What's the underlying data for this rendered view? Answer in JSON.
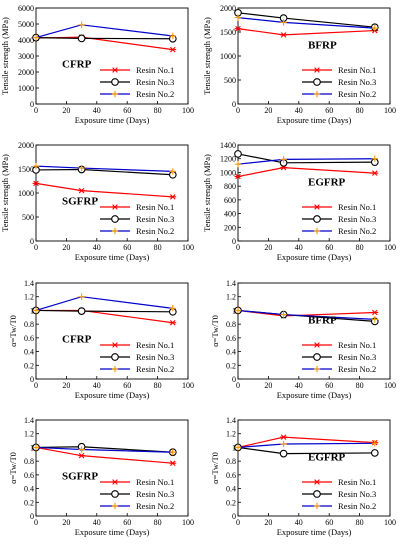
{
  "legend_labels": [
    "Resin No.1",
    "Resin No.3",
    "Resin No.2"
  ],
  "colors": {
    "resin1": "#ff0000",
    "resin3": "#000000",
    "resin2": "#0000cc",
    "resin2_marker": "#ff9900"
  },
  "chart_data": [
    {
      "type": "line",
      "panel": "CFRP",
      "label": "CFRP",
      "xlabel": "Exposure time (Days)",
      "ylabel": "Tensile strength (MPa)",
      "xlim": [
        0,
        100
      ],
      "ylim": [
        0,
        6000
      ],
      "xticks": [
        "0",
        "20",
        "40",
        "60",
        "80",
        "100"
      ],
      "yticks": [
        "0",
        "1000",
        "2000",
        "3000",
        "4000",
        "5000",
        "6000"
      ],
      "x": [
        0,
        30,
        90
      ],
      "series": [
        {
          "name": "Resin No.1",
          "values": [
            4120,
            4180,
            3400
          ]
        },
        {
          "name": "Resin No.3",
          "values": [
            4150,
            4100,
            4080
          ]
        },
        {
          "name": "Resin No.2",
          "values": [
            4150,
            4950,
            4250
          ]
        }
      ],
      "label_pos": "left"
    },
    {
      "type": "line",
      "panel": "BFRP",
      "label": "BFRP",
      "xlabel": "Exposure time (Days)",
      "ylabel": "Tensile strength (MPa)",
      "xlim": [
        0,
        100
      ],
      "ylim": [
        0,
        2000
      ],
      "xticks": [
        "0",
        "20",
        "40",
        "60",
        "80",
        "100"
      ],
      "yticks": [
        "0",
        "500",
        "1000",
        "1500",
        "2000"
      ],
      "x": [
        0,
        30,
        90
      ],
      "series": [
        {
          "name": "Resin No.1",
          "values": [
            1570,
            1440,
            1530
          ]
        },
        {
          "name": "Resin No.3",
          "values": [
            1900,
            1790,
            1600
          ]
        },
        {
          "name": "Resin No.2",
          "values": [
            1800,
            1700,
            1580
          ]
        }
      ],
      "label_pos": "right"
    },
    {
      "type": "line",
      "panel": "SGFRP",
      "label": "SGFRP",
      "xlabel": "Exposure time (Days)",
      "ylabel": "Tensile strength (MPa)",
      "xlim": [
        0,
        100
      ],
      "ylim": [
        0,
        2000
      ],
      "xticks": [
        "0",
        "20",
        "40",
        "60",
        "80",
        "100"
      ],
      "yticks": [
        "0",
        "500",
        "1000",
        "1500",
        "2000"
      ],
      "x": [
        0,
        30,
        90
      ],
      "series": [
        {
          "name": "Resin No.1",
          "values": [
            1200,
            1050,
            920
          ]
        },
        {
          "name": "Resin No.3",
          "values": [
            1480,
            1490,
            1380
          ]
        },
        {
          "name": "Resin No.2",
          "values": [
            1560,
            1520,
            1450
          ]
        }
      ],
      "label_pos": "left"
    },
    {
      "type": "line",
      "panel": "EGFRP",
      "label": "EGFRP",
      "xlabel": "Exposure time (Days)",
      "ylabel": "Tensile strength (MPa)",
      "xlim": [
        0,
        100
      ],
      "ylim": [
        0,
        1400
      ],
      "xticks": [
        "0",
        "20",
        "40",
        "60",
        "80",
        "100"
      ],
      "yticks": [
        "0",
        "200",
        "400",
        "600",
        "800",
        "1000",
        "1200",
        "1400"
      ],
      "x": [
        0,
        30,
        90
      ],
      "series": [
        {
          "name": "Resin No.1",
          "values": [
            940,
            1070,
            990
          ]
        },
        {
          "name": "Resin No.3",
          "values": [
            1270,
            1140,
            1150
          ]
        },
        {
          "name": "Resin No.2",
          "values": [
            1120,
            1190,
            1200
          ]
        }
      ],
      "label_pos": "right"
    },
    {
      "type": "line",
      "panel": "CFRP-retention",
      "label": "CFRP",
      "xlabel": "Exposure time (Days)",
      "ylabel": "α=Tw/T0",
      "xlim": [
        0,
        100
      ],
      "ylim": [
        0,
        1.4
      ],
      "xticks": [
        "0",
        "20",
        "40",
        "60",
        "80",
        "100"
      ],
      "yticks": [
        "0",
        "0.2",
        "0.4",
        "0.6",
        "0.8",
        "1",
        "1.2",
        "1.4"
      ],
      "x": [
        0,
        30,
        90
      ],
      "series": [
        {
          "name": "Resin No.1",
          "values": [
            1.0,
            1.0,
            0.82
          ]
        },
        {
          "name": "Resin No.3",
          "values": [
            1.0,
            0.99,
            0.98
          ]
        },
        {
          "name": "Resin No.2",
          "values": [
            1.0,
            1.2,
            1.03
          ]
        }
      ],
      "label_pos": "left"
    },
    {
      "type": "line",
      "panel": "BFRP-retention",
      "label": "BFRP",
      "xlabel": "Exposure time (Days)",
      "ylabel": "α=Tw/T0",
      "xlim": [
        0,
        100
      ],
      "ylim": [
        0,
        1.4
      ],
      "xticks": [
        "0",
        "20",
        "40",
        "60",
        "80",
        "100"
      ],
      "yticks": [
        "0",
        "0.2",
        "0.4",
        "0.6",
        "0.8",
        "1",
        "1.2",
        "1.4"
      ],
      "x": [
        0,
        30,
        90
      ],
      "series": [
        {
          "name": "Resin No.1",
          "values": [
            1.0,
            0.92,
            0.97
          ]
        },
        {
          "name": "Resin No.3",
          "values": [
            1.0,
            0.94,
            0.84
          ]
        },
        {
          "name": "Resin No.2",
          "values": [
            1.0,
            0.94,
            0.87
          ]
        }
      ],
      "label_pos": "right"
    },
    {
      "type": "line",
      "panel": "SGFRP-retention",
      "label": "SGFRP",
      "xlabel": "Exposure time (Days)",
      "ylabel": "α=Tw/T0",
      "xlim": [
        0,
        100
      ],
      "ylim": [
        0,
        1.4
      ],
      "xticks": [
        "0",
        "20",
        "40",
        "60",
        "80",
        "100"
      ],
      "yticks": [
        "0",
        "0.2",
        "0.4",
        "0.6",
        "0.8",
        "1",
        "1.2",
        "1.4"
      ],
      "x": [
        0,
        30,
        90
      ],
      "series": [
        {
          "name": "Resin No.1",
          "values": [
            1.0,
            0.88,
            0.77
          ]
        },
        {
          "name": "Resin No.3",
          "values": [
            1.0,
            1.01,
            0.93
          ]
        },
        {
          "name": "Resin No.2",
          "values": [
            1.0,
            0.97,
            0.93
          ]
        }
      ],
      "label_pos": "left"
    },
    {
      "type": "line",
      "panel": "EGFRP-retention",
      "label": "EGFRP",
      "xlabel": "Exposure time (Days)",
      "ylabel": "α=Tw/T0",
      "xlim": [
        0,
        100
      ],
      "ylim": [
        0,
        1.4
      ],
      "xticks": [
        "0",
        "20",
        "40",
        "60",
        "80",
        "100"
      ],
      "yticks": [
        "0",
        "0.2",
        "0.4",
        "0.6",
        "0.8",
        "1",
        "1.2",
        "1.4"
      ],
      "x": [
        0,
        30,
        90
      ],
      "series": [
        {
          "name": "Resin No.1",
          "values": [
            1.0,
            1.15,
            1.07
          ]
        },
        {
          "name": "Resin No.3",
          "values": [
            1.0,
            0.91,
            0.92
          ]
        },
        {
          "name": "Resin No.2",
          "values": [
            1.0,
            1.05,
            1.06
          ]
        }
      ],
      "label_pos": "right"
    }
  ]
}
